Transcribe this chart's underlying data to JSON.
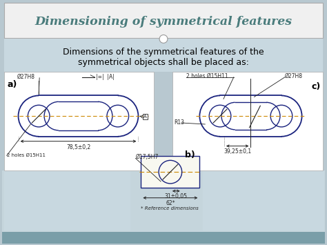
{
  "title": "Dimensioning of symmetrical features",
  "subtitle_line1": "Dimensions of the symmetrical features of the",
  "subtitle_line2": "symmetrical objects shall be placed as:",
  "bg_color": "#b8c8d0",
  "title_bg_color": "#f0f0f0",
  "title_color": "#4a7c7c",
  "drawing_color": "#1a237e",
  "dim_color": "#222222",
  "centerline_color": "#cc8800",
  "label_a": "a)",
  "label_b": "b)",
  "label_c": "c)",
  "dim_a_length": "78,5±0,2",
  "dim_a_dia1": "Ø27H8",
  "dim_a_dia2": "2 holes Ø15H11",
  "dim_b_dia1": "Ø17,5H7",
  "dim_b_length1": "31±0,05",
  "dim_b_length2": "62*",
  "dim_c_holes": "2 holes Ø15H11",
  "dim_c_dia": "Ø27H8",
  "dim_c_radius": "R13",
  "dim_c_length": "39,25±0,1",
  "ref_note": "* Reference dimensions",
  "footer_color": "#7a9ea8",
  "sym_text": "|=|  |A|"
}
